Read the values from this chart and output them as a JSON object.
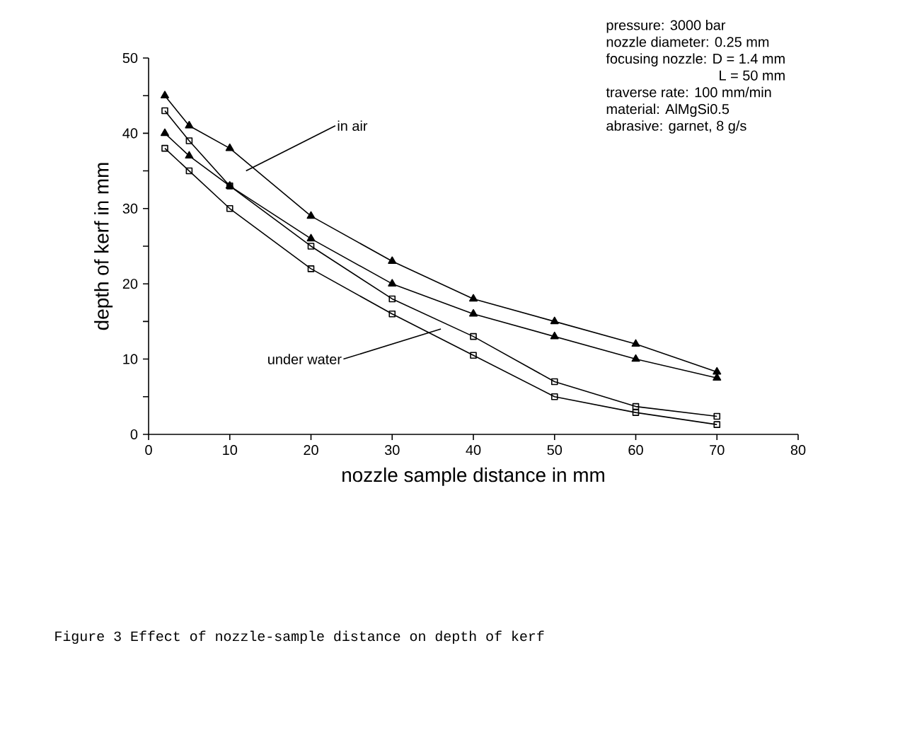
{
  "chart_data": {
    "type": "line",
    "xlabel": "nozzle sample distance in mm",
    "ylabel": "depth of kerf in mm",
    "x": [
      2,
      5,
      10,
      20,
      30,
      40,
      50,
      60,
      70
    ],
    "series": [
      {
        "color": "#000000",
        "marker": "triangle",
        "values": [
          45,
          41,
          38,
          29,
          23,
          18,
          15,
          12,
          8.3
        ]
      },
      {
        "color": "#000000",
        "marker": "triangle",
        "values": [
          40,
          37,
          33,
          26,
          20,
          16,
          13,
          10,
          7.5
        ]
      },
      {
        "color": "#000000",
        "marker": "square",
        "values": [
          43,
          39,
          33,
          25,
          18,
          13,
          7,
          3.7,
          2.4
        ]
      },
      {
        "color": "#000000",
        "marker": "square",
        "values": [
          38,
          35,
          30,
          22,
          16,
          10.5,
          5,
          2.9,
          1.3
        ]
      }
    ],
    "xlim": [
      0,
      80
    ],
    "ylim": [
      0,
      50
    ],
    "xticks": [
      0,
      10,
      20,
      30,
      40,
      50,
      60,
      70,
      80
    ],
    "yticks": [
      0,
      {
        "value": 5,
        "label": null
      },
      10,
      {
        "value": 15,
        "label": null
      },
      20,
      {
        "value": 25,
        "label": null
      },
      30,
      {
        "value": 35,
        "label": null
      },
      40,
      {
        "value": 45,
        "label": null
      },
      50
    ],
    "grid": false,
    "line_style": "solid",
    "annotations": [
      {
        "text": "in air",
        "x": 12,
        "y": 35
      },
      {
        "text": "under water",
        "x": 36,
        "y": 14
      },
      "pressure: 3000 bar",
      "nozzle diameter: 0.25 mm",
      "focusing nozzle: D = 1.4 mm",
      "L = 50 mm",
      "traverse rate: 100 mm/min",
      "material: AlMgSi0.5",
      "abrasive: garnet, 8 g/s",
      "Figure 3   Effect of nozzle-sample distance on depth of kerf"
    ]
  }
}
